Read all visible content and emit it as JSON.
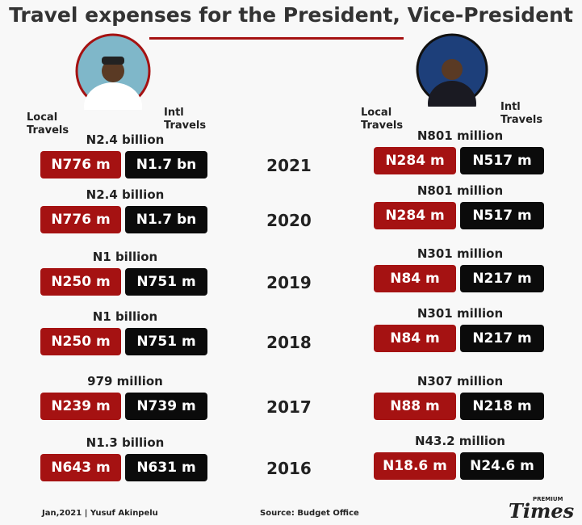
{
  "title": "Travel expenses for the President, Vice-President",
  "president": {
    "local_label": "Local Travels",
    "intl_label": "Intl Travels"
  },
  "vice_president": {
    "local_label": "Local Travels",
    "intl_label": "Intl Travels"
  },
  "rows": [
    {
      "year": "2021",
      "president": {
        "total": "N2.4 billion",
        "local": "N776 m",
        "intl": "N1.7 bn"
      },
      "vice_president": {
        "total": "N801 million",
        "local": "N284 m",
        "intl": "N517 m"
      }
    },
    {
      "year": "2020",
      "president": {
        "total": "N2.4 billion",
        "local": "N776 m",
        "intl": "N1.7 bn"
      },
      "vice_president": {
        "total": "N801 million",
        "local": "N284 m",
        "intl": "N517 m"
      }
    },
    {
      "year": "2019",
      "president": {
        "total": "N1 billion",
        "local": "N250 m",
        "intl": "N751 m"
      },
      "vice_president": {
        "total": "N301 million",
        "local": "N84 m",
        "intl": "N217 m"
      }
    },
    {
      "year": "2018",
      "president": {
        "total": "N1 billion",
        "local": "N250 m",
        "intl": "N751 m"
      },
      "vice_president": {
        "total": "N301 million",
        "local": "N84 m",
        "intl": "N217 m"
      }
    },
    {
      "year": "2017",
      "president": {
        "total": "979 million",
        "local": "N239 m",
        "intl": "N739 m"
      },
      "vice_president": {
        "total": "N307 million",
        "local": "N88 m",
        "intl": "N218 m"
      }
    },
    {
      "year": "2016",
      "president": {
        "total": "N1.3 billion",
        "local": "N643 m",
        "intl": "N631 m"
      },
      "vice_president": {
        "total": "N43.2 million",
        "local": "N18.6 m",
        "intl": "N24.6 m"
      }
    }
  ],
  "footer": {
    "credit": "Jan,2021 | Yusuf Akinpelu",
    "source": "Source: Budget Office",
    "logo_small": "PREMIUM",
    "logo": "Times"
  }
}
